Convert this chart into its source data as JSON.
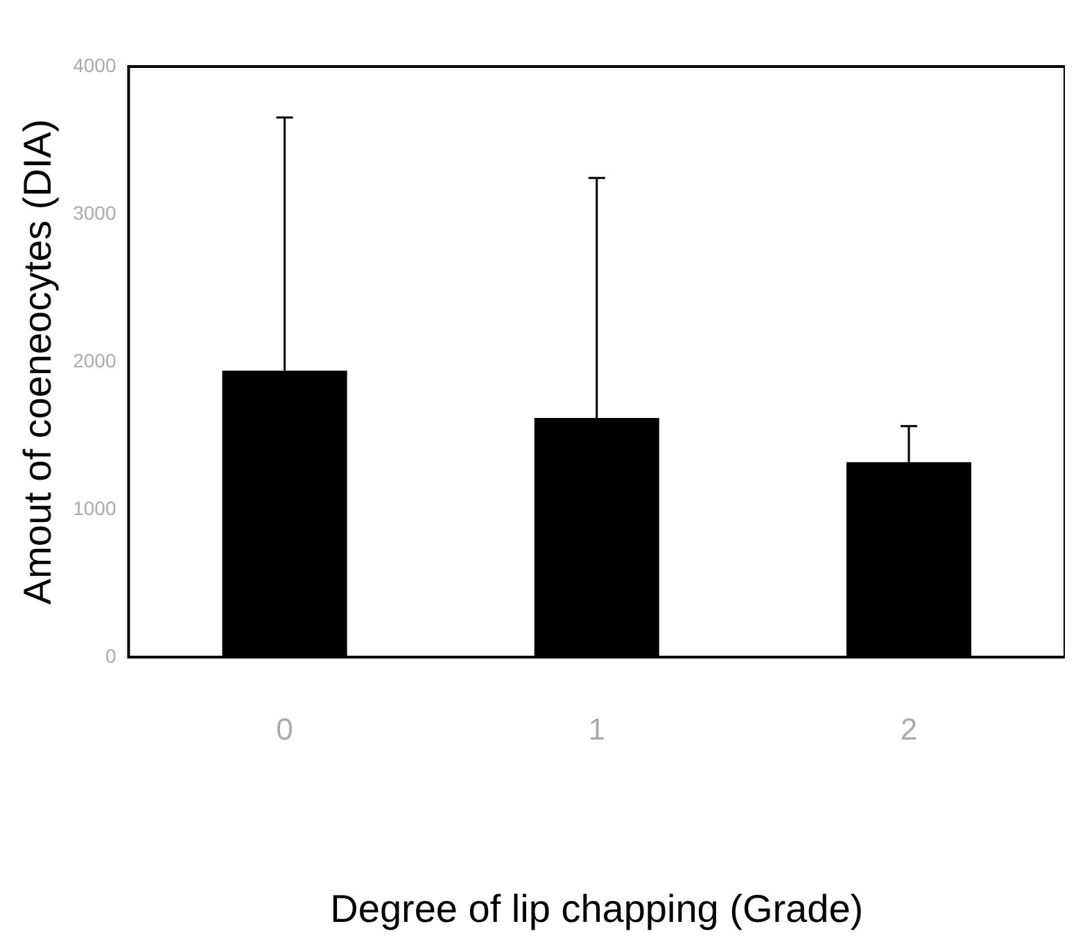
{
  "chart_data": {
    "type": "bar",
    "xlabel": "Degree of lip chapping (Grade)",
    "ylabel": "Amout of coeneocytes (DIA)",
    "categories": [
      "0",
      "1",
      "2"
    ],
    "values": [
      1940,
      1620,
      1320
    ],
    "errors": [
      [
        1940,
        3655
      ],
      [
        1620,
        3245
      ],
      [
        1320,
        1565
      ]
    ],
    "color": "#000000",
    "ylim": [
      0,
      4000
    ],
    "yticks": [
      0,
      1000,
      2000,
      3000,
      4000
    ],
    "grid": false,
    "legend": false
  }
}
